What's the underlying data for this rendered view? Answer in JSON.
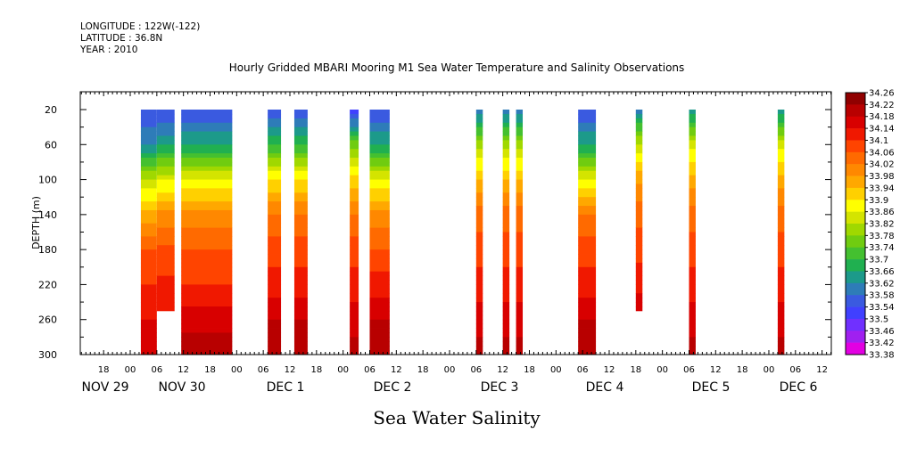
{
  "header": {
    "longitude": "LONGITUDE : 122W(-122)",
    "latitude": "LATITUDE : 36.8N",
    "year": "YEAR : 2010"
  },
  "chart_data": {
    "type": "heatmap",
    "title": "Hourly Gridded MBARI Mooring M1 Sea Water Temperature and Salinity Observations",
    "xlabel": "Sea Water Salinity",
    "ylabel": "DEPTH (m)",
    "x_tick_hours": [
      "18",
      "00",
      "06",
      "12",
      "18",
      "00",
      "06",
      "12",
      "18",
      "00",
      "06",
      "12",
      "18",
      "00",
      "06",
      "12",
      "18",
      "00",
      "06",
      "12",
      "18",
      "00",
      "06",
      "12",
      "18",
      "00",
      "06",
      "12",
      "18",
      "00",
      "06",
      "12"
    ],
    "x_day_labels": [
      "NOV 29",
      "NOV 30",
      "DEC 1",
      "DEC 2",
      "DEC 3",
      "DEC 4",
      "DEC 5",
      "DEC 6"
    ],
    "y_ticks": [
      "20",
      "60",
      "100",
      "140",
      "180",
      "220",
      "260",
      "300"
    ],
    "ylim": [
      300,
      20
    ],
    "legend_labels": [
      "34.26",
      "34.22",
      "34.18",
      "34.14",
      "34.1",
      "34.06",
      "34.02",
      "33.98",
      "33.94",
      "33.9",
      "33.86",
      "33.82",
      "33.78",
      "33.74",
      "33.7",
      "33.66",
      "33.62",
      "33.58",
      "33.54",
      "33.5",
      "33.46",
      "33.42",
      "33.38"
    ],
    "colormap": [
      "#e200e2",
      "#a020f0",
      "#7030ff",
      "#4040ff",
      "#3a5ae0",
      "#2e7cb8",
      "#1c9a8a",
      "#20b050",
      "#44c030",
      "#70cc10",
      "#a0d800",
      "#d4e400",
      "#ffff00",
      "#ffd000",
      "#ffa800",
      "#ff8800",
      "#ff6a00",
      "#ff4400",
      "#f01800",
      "#d80000",
      "#b80000",
      "#900000"
    ],
    "series": [
      {
        "start_hour": 2.4,
        "end_hour": 6.0,
        "depth_top": 20,
        "depth_bottom": 300,
        "salinity_profile": [
          33.54,
          33.62,
          33.82,
          33.96,
          34.06,
          34.1,
          34.14,
          34.18
        ]
      },
      {
        "start_hour": 6.0,
        "end_hour": 10.0,
        "depth_top": 20,
        "depth_bottom": 250,
        "salinity_profile": [
          33.54,
          33.64,
          33.84,
          33.98,
          34.06,
          34.1,
          34.12
        ]
      },
      {
        "start_hour": 11.5,
        "end_hour": 23.0,
        "depth_top": 20,
        "depth_bottom": 300,
        "salinity_profile": [
          33.54,
          33.66,
          33.86,
          34.0,
          34.06,
          34.1,
          34.16,
          34.22
        ]
      },
      {
        "start_hour": 31.0,
        "end_hour": 34.0,
        "depth_top": 20,
        "depth_bottom": 300,
        "salinity_profile": [
          33.54,
          33.7,
          33.9,
          34.02,
          34.08,
          34.12,
          34.18,
          34.2
        ]
      },
      {
        "start_hour": 37.0,
        "end_hour": 40.0,
        "depth_top": 20,
        "depth_bottom": 300,
        "salinity_profile": [
          33.54,
          33.7,
          33.9,
          34.02,
          34.08,
          34.12,
          34.18,
          34.2
        ]
      },
      {
        "start_hour": 49.5,
        "end_hour": 51.5,
        "depth_top": 20,
        "depth_bottom": 300,
        "salinity_profile": [
          33.5,
          33.76,
          33.92,
          34.02,
          34.08,
          34.12,
          34.16,
          34.2
        ]
      },
      {
        "start_hour": 54.0,
        "end_hour": 58.5,
        "depth_top": 20,
        "depth_bottom": 300,
        "salinity_profile": [
          33.54,
          33.66,
          33.86,
          34.0,
          34.06,
          34.12,
          34.18,
          34.22
        ]
      },
      {
        "start_hour": 78.0,
        "end_hour": 79.5,
        "depth_top": 20,
        "depth_bottom": 300,
        "salinity_profile": [
          33.58,
          33.8,
          33.94,
          34.04,
          34.08,
          34.12,
          34.16,
          34.2
        ]
      },
      {
        "start_hour": 84.0,
        "end_hour": 85.5,
        "depth_top": 20,
        "depth_bottom": 300,
        "salinity_profile": [
          33.58,
          33.8,
          33.94,
          34.04,
          34.08,
          34.12,
          34.16,
          34.2
        ]
      },
      {
        "start_hour": 87.0,
        "end_hour": 88.5,
        "depth_top": 20,
        "depth_bottom": 300,
        "salinity_profile": [
          33.58,
          33.8,
          33.94,
          34.04,
          34.08,
          34.12,
          34.16,
          34.2
        ]
      },
      {
        "start_hour": 101.0,
        "end_hour": 105.0,
        "depth_top": 20,
        "depth_bottom": 300,
        "salinity_profile": [
          33.54,
          33.66,
          33.86,
          34.02,
          34.08,
          34.12,
          34.18,
          34.22
        ]
      },
      {
        "start_hour": 114.0,
        "end_hour": 115.5,
        "depth_top": 20,
        "depth_bottom": 250,
        "salinity_profile": [
          33.6,
          33.82,
          33.96,
          34.04,
          34.08,
          34.12,
          34.16
        ]
      },
      {
        "start_hour": 126.0,
        "end_hour": 127.5,
        "depth_top": 20,
        "depth_bottom": 300,
        "salinity_profile": [
          33.62,
          33.84,
          33.96,
          34.04,
          34.08,
          34.12,
          34.16,
          34.2
        ]
      },
      {
        "start_hour": 146.0,
        "end_hour": 147.5,
        "depth_top": 20,
        "depth_bottom": 300,
        "salinity_profile": [
          33.62,
          33.84,
          33.96,
          34.04,
          34.08,
          34.12,
          34.16,
          34.2
        ]
      }
    ]
  }
}
